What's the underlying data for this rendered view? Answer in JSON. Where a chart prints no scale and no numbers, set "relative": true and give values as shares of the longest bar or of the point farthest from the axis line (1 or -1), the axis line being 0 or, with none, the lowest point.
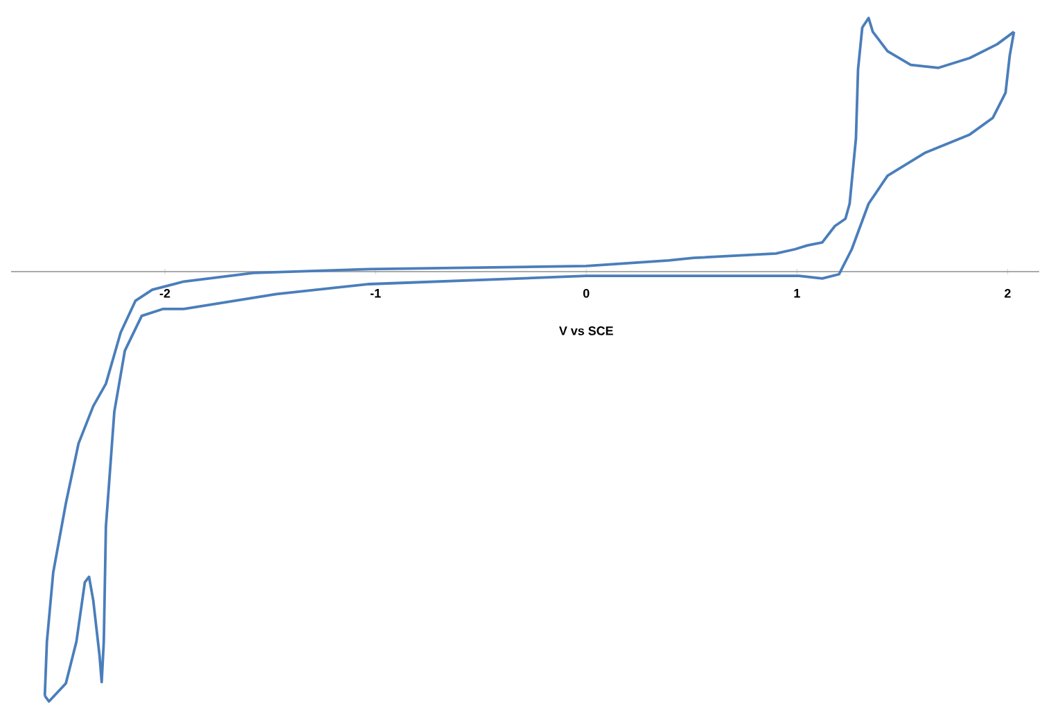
{
  "chart_data": {
    "type": "line",
    "relative": true,
    "xlabel": "V vs SCE",
    "xlim": [
      -2.73,
      2.15
    ],
    "xticks": [
      -2,
      -1,
      0,
      1,
      2
    ],
    "marker": "none",
    "series": [
      {
        "color": "#4a7ebb",
        "x": [
          2.03,
          1.95,
          1.82,
          1.67,
          1.54,
          1.43,
          1.36,
          1.34,
          1.31,
          1.29,
          1.28,
          1.25,
          1.23,
          1.18,
          1.12,
          1.05,
          0.99,
          0.9,
          0.51,
          0.39,
          0.0,
          -1.03,
          -1.58,
          -1.91,
          -2.06,
          -2.14,
          -2.21,
          -2.28,
          -2.34,
          -2.41,
          -2.47,
          -2.53,
          -2.56,
          -2.57
        ],
        "values": [
          0.558,
          0.529,
          0.497,
          0.474,
          0.481,
          0.513,
          0.558,
          0.59,
          0.568,
          0.471,
          0.31,
          0.158,
          0.123,
          0.106,
          0.068,
          0.061,
          0.052,
          0.042,
          0.032,
          0.026,
          0.013,
          0.006,
          -0.003,
          -0.023,
          -0.042,
          -0.068,
          -0.142,
          -0.261,
          -0.313,
          -0.4,
          -0.539,
          -0.7,
          -0.861,
          -0.987
        ]
      },
      {
        "color": "#4a7ebb",
        "x": [
          -2.57,
          -2.55,
          -2.47,
          -2.42,
          -2.38,
          -2.36,
          -2.34,
          -2.31,
          -2.3,
          -2.29,
          -2.28,
          -2.24,
          -2.19,
          -2.11,
          -2.01,
          -1.91,
          -1.47,
          -1.03,
          0.0,
          1.01,
          1.12,
          1.2,
          1.26,
          1.34,
          1.43,
          1.61,
          1.82,
          1.93,
          1.99,
          2.01,
          2.03
        ],
        "values": [
          -0.987,
          -1.0,
          -0.958,
          -0.861,
          -0.723,
          -0.71,
          -0.765,
          -0.894,
          -0.955,
          -0.861,
          -0.594,
          -0.326,
          -0.184,
          -0.103,
          -0.087,
          -0.087,
          -0.052,
          -0.029,
          -0.01,
          -0.01,
          -0.016,
          -0.006,
          0.052,
          0.158,
          0.223,
          0.277,
          0.319,
          0.358,
          0.416,
          0.503,
          0.558
        ]
      }
    ]
  }
}
